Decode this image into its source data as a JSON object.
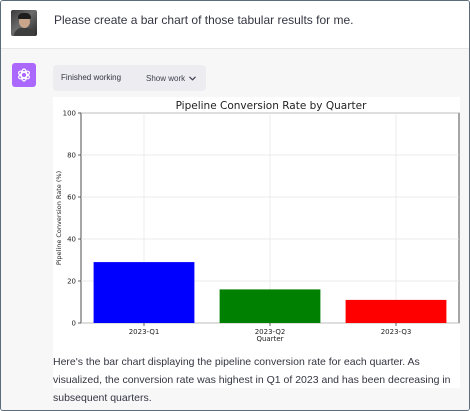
{
  "user": {
    "message": "Please create a bar chart of those tabular results for me."
  },
  "assistant": {
    "status_label": "Finished working",
    "show_work_label": "Show work",
    "response": "Here's the bar chart displaying the pipeline conversion rate for each quarter. As visualized, the conversion rate was highest in Q1 of 2023 and has been decreasing in subsequent quarters."
  },
  "colors": {
    "assistant_icon": "#ab68ff",
    "assistant_bg": "#f7f7f8"
  },
  "chart_data": {
    "type": "bar",
    "title": "Pipeline Conversion Rate by Quarter",
    "xlabel": "Quarter",
    "ylabel": "Pipeline Conversion Rate (%)",
    "categories": [
      "2023-Q1",
      "2023-Q2",
      "2023-Q3"
    ],
    "values": [
      29,
      16,
      11
    ],
    "colors": [
      "#0000ff",
      "#008000",
      "#ff0000"
    ],
    "ylim": [
      0,
      100
    ],
    "yticks": [
      0,
      20,
      40,
      60,
      80,
      100
    ],
    "grid": true
  }
}
